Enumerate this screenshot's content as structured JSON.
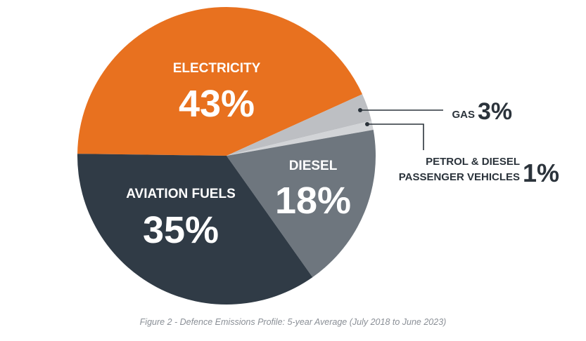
{
  "chart_data": {
    "type": "pie",
    "slices": [
      {
        "label": "ELECTRICITY",
        "value": 43,
        "display": "43%",
        "color": "#E8711F"
      },
      {
        "label": "GAS",
        "value": 3,
        "display": "3%",
        "color": "#BDBFC3"
      },
      {
        "label": "PETROL & DIESEL PASSENGER VEHICLES",
        "value": 1,
        "display": "1%",
        "color": "#D2D4D7"
      },
      {
        "label": "DIESEL",
        "value": 18,
        "display": "18%",
        "color": "#6E767E"
      },
      {
        "label": "AVIATION FUELS",
        "value": 35,
        "display": "35%",
        "color": "#303B46"
      }
    ],
    "callout_lines": {
      "petrol_line1": "PETROL & DIESEL",
      "petrol_line2": "PASSENGER VEHICLES"
    },
    "caption": "Figure 2 - Defence Emissions Profile: 5-year Average (July 2018 to June 2023)"
  }
}
